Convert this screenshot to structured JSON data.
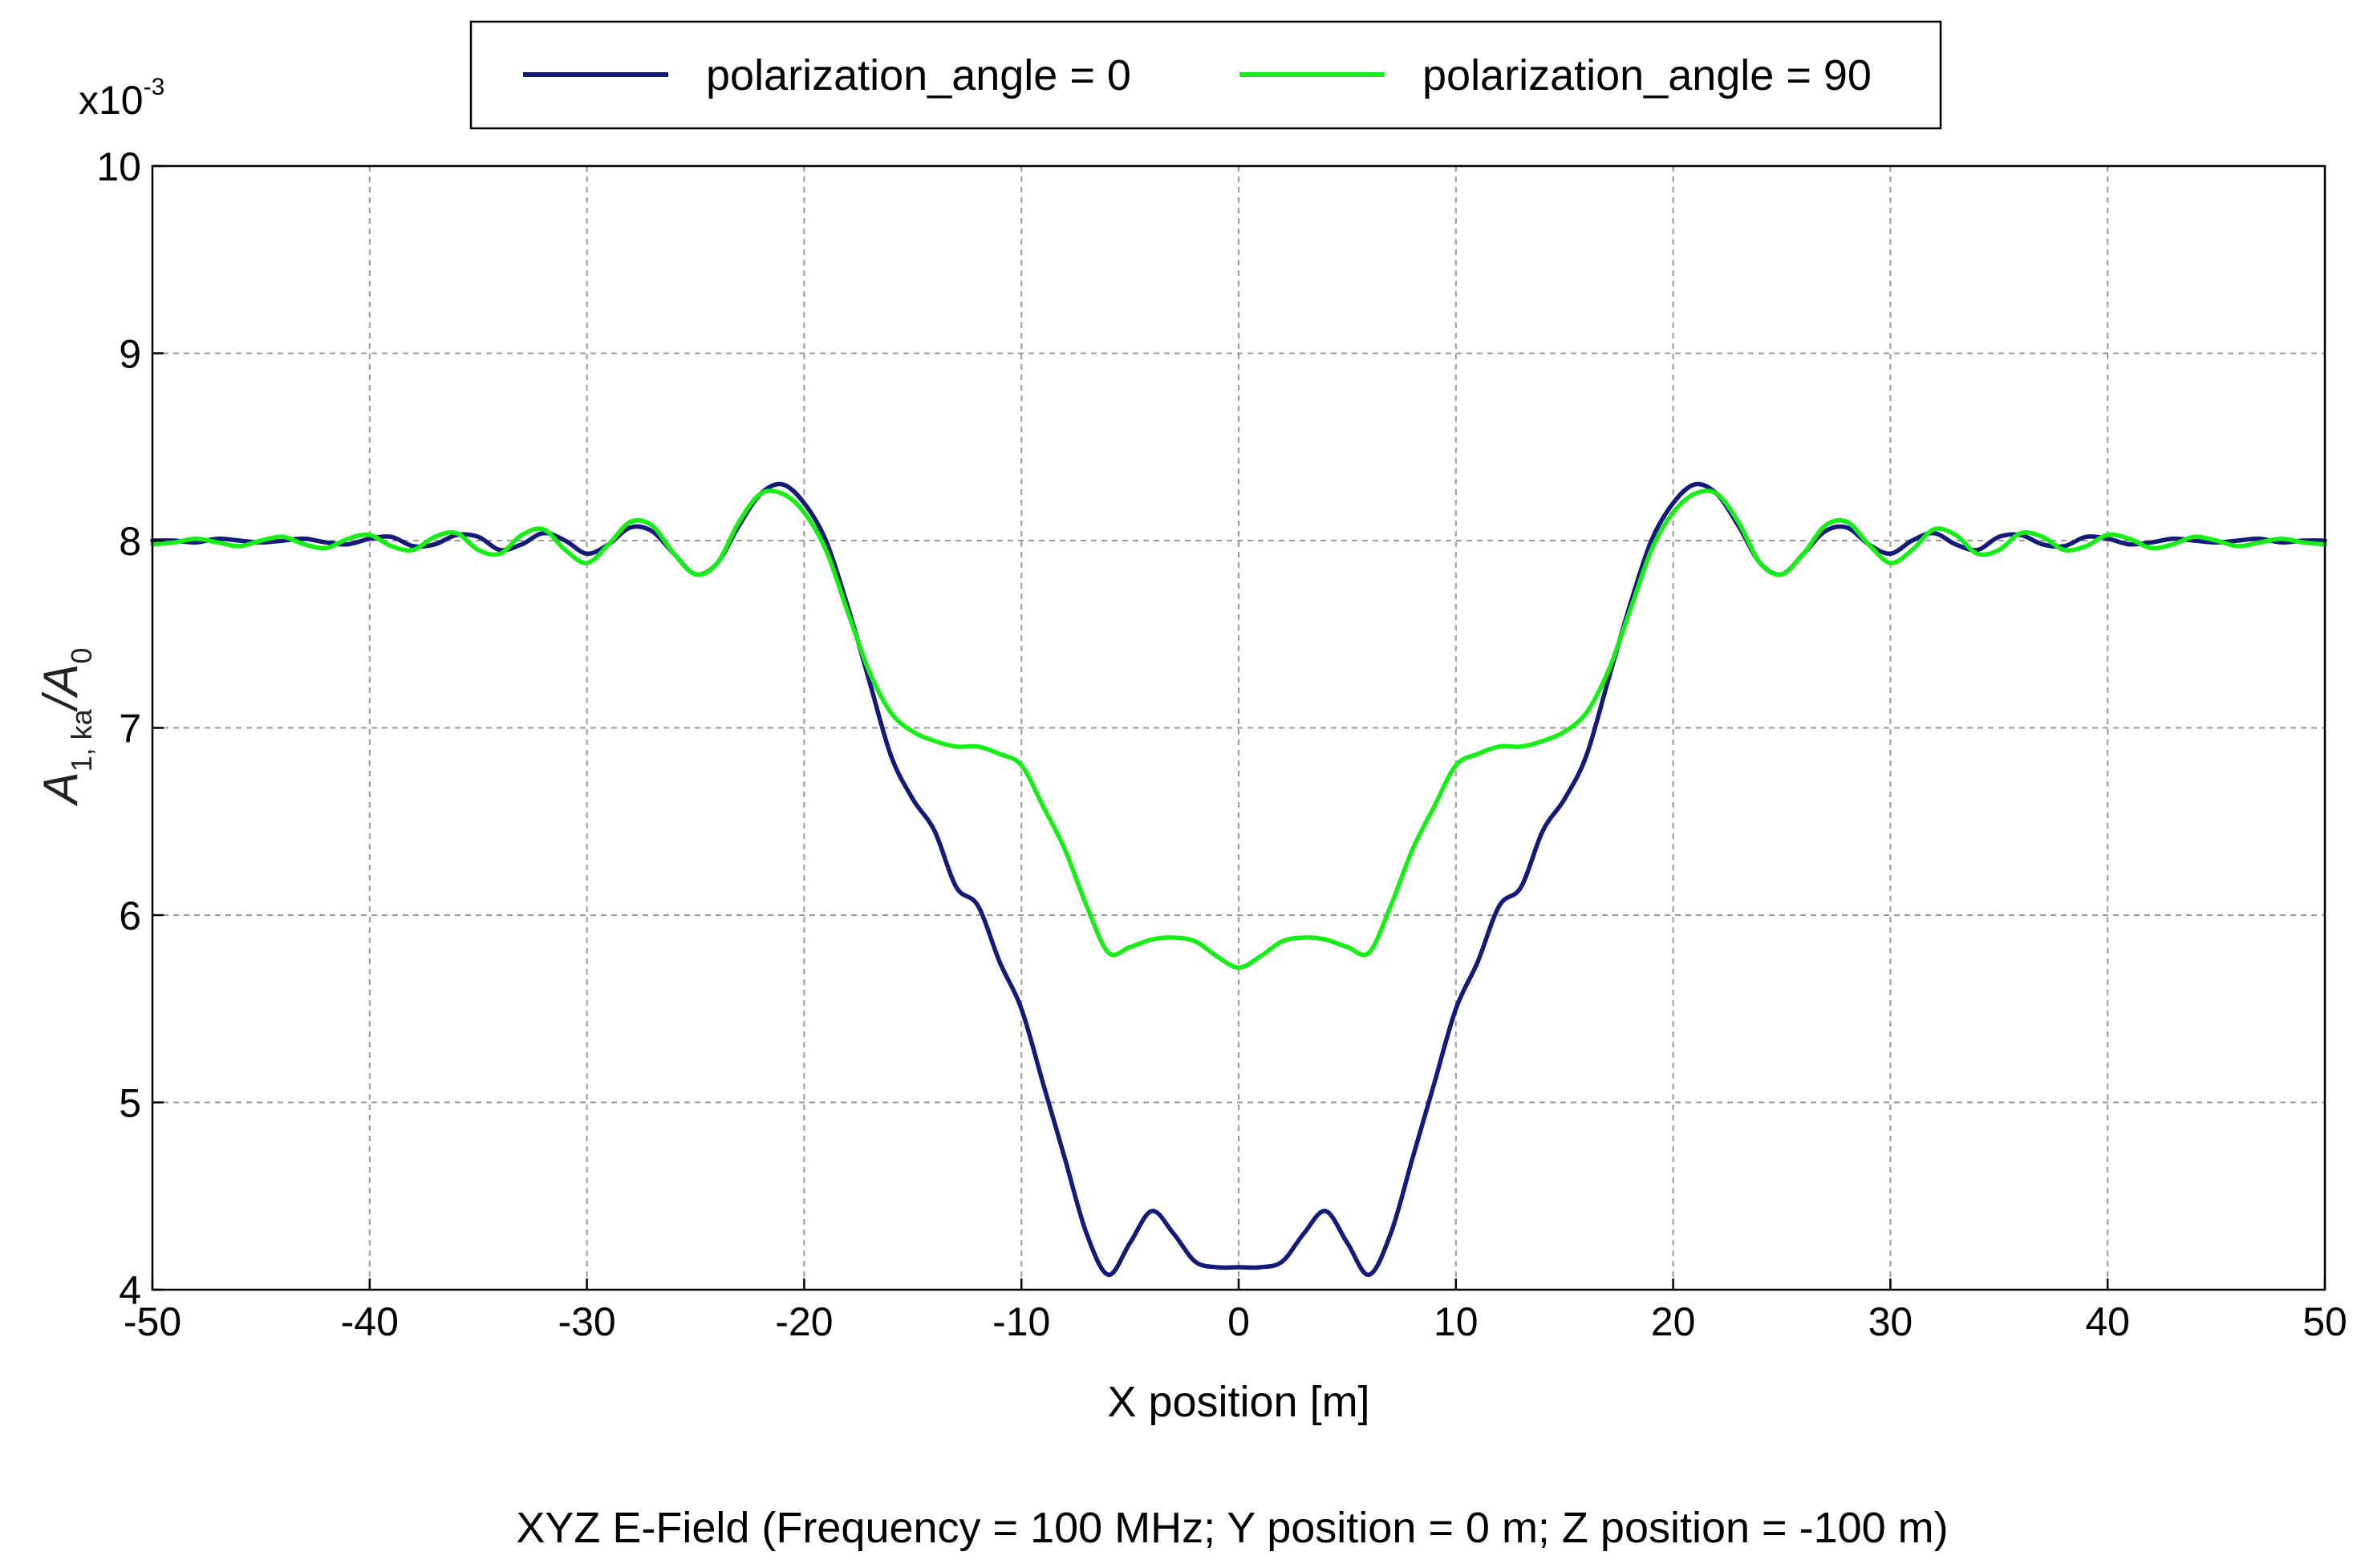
{
  "chart_data": {
    "type": "line",
    "xlabel": "X position [m]",
    "ylabel": "A",
    "ylabel_sub": "1, ka",
    "ylabel_tail": "/A",
    "ylabel_tail_sub": "0",
    "y_scale_label": "x10",
    "y_scale_exp": "-3",
    "caption": "XYZ E-Field (Frequency = 100 MHz; Y position = 0 m; Z position = -100 m)",
    "xlim": [
      -50,
      50
    ],
    "ylim": [
      4,
      10
    ],
    "xticks": [
      -50,
      -40,
      -30,
      -20,
      -10,
      0,
      10,
      20,
      30,
      40,
      50
    ],
    "yticks": [
      4,
      5,
      6,
      7,
      8,
      9,
      10
    ],
    "grid": true,
    "legend_position": "top",
    "series": [
      {
        "name": "polarization_angle = 0",
        "color": "#141a7a",
        "points": [
          [
            0,
            4.12
          ],
          [
            1,
            4.12
          ],
          [
            2,
            4.15
          ],
          [
            3,
            4.3
          ],
          [
            4,
            4.42
          ],
          [
            5,
            4.25
          ],
          [
            6,
            4.08
          ],
          [
            7,
            4.3
          ],
          [
            8,
            4.7
          ],
          [
            9,
            5.1
          ],
          [
            10,
            5.5
          ],
          [
            11,
            5.75
          ],
          [
            12,
            6.05
          ],
          [
            13,
            6.15
          ],
          [
            14,
            6.45
          ],
          [
            15,
            6.62
          ],
          [
            16,
            6.85
          ],
          [
            17,
            7.25
          ],
          [
            18,
            7.65
          ],
          [
            19,
            8.0
          ],
          [
            20,
            8.2
          ],
          [
            21,
            8.3
          ],
          [
            22,
            8.25
          ],
          [
            23,
            8.08
          ],
          [
            24,
            7.88
          ],
          [
            25,
            7.82
          ],
          [
            26,
            7.93
          ],
          [
            27,
            8.05
          ],
          [
            28,
            8.07
          ],
          [
            29,
            7.98
          ],
          [
            30,
            7.93
          ],
          [
            31,
            8.0
          ],
          [
            32,
            8.04
          ],
          [
            33,
            7.98
          ],
          [
            34,
            7.95
          ],
          [
            35,
            8.02
          ],
          [
            36,
            8.03
          ],
          [
            37,
            7.98
          ],
          [
            38,
            7.97
          ],
          [
            39,
            8.02
          ],
          [
            40,
            8.01
          ],
          [
            41,
            7.98
          ],
          [
            42,
            7.99
          ],
          [
            43,
            8.01
          ],
          [
            44,
            8.0
          ],
          [
            45,
            7.99
          ],
          [
            46,
            8.0
          ],
          [
            47,
            8.01
          ],
          [
            48,
            7.99
          ],
          [
            49,
            8.0
          ],
          [
            50,
            8.0
          ]
        ]
      },
      {
        "name": "polarization_angle = 90",
        "color": "#14ef14",
        "points": [
          [
            0,
            5.72
          ],
          [
            1,
            5.78
          ],
          [
            2,
            5.86
          ],
          [
            3,
            5.88
          ],
          [
            4,
            5.87
          ],
          [
            5,
            5.83
          ],
          [
            6,
            5.8
          ],
          [
            7,
            6.05
          ],
          [
            8,
            6.35
          ],
          [
            9,
            6.58
          ],
          [
            10,
            6.8
          ],
          [
            11,
            6.86
          ],
          [
            12,
            6.9
          ],
          [
            13,
            6.9
          ],
          [
            14,
            6.93
          ],
          [
            15,
            6.98
          ],
          [
            16,
            7.08
          ],
          [
            17,
            7.3
          ],
          [
            18,
            7.62
          ],
          [
            19,
            7.95
          ],
          [
            20,
            8.15
          ],
          [
            21,
            8.25
          ],
          [
            22,
            8.25
          ],
          [
            23,
            8.1
          ],
          [
            24,
            7.88
          ],
          [
            25,
            7.82
          ],
          [
            26,
            7.93
          ],
          [
            27,
            8.08
          ],
          [
            28,
            8.1
          ],
          [
            29,
            7.98
          ],
          [
            30,
            7.88
          ],
          [
            31,
            7.95
          ],
          [
            32,
            8.06
          ],
          [
            33,
            8.03
          ],
          [
            34,
            7.93
          ],
          [
            35,
            7.95
          ],
          [
            36,
            8.04
          ],
          [
            37,
            8.02
          ],
          [
            38,
            7.95
          ],
          [
            39,
            7.97
          ],
          [
            40,
            8.03
          ],
          [
            41,
            8.01
          ],
          [
            42,
            7.96
          ],
          [
            43,
            7.98
          ],
          [
            44,
            8.02
          ],
          [
            45,
            8.0
          ],
          [
            46,
            7.97
          ],
          [
            47,
            7.99
          ],
          [
            48,
            8.01
          ],
          [
            49,
            7.99
          ],
          [
            50,
            7.98
          ]
        ]
      }
    ]
  }
}
